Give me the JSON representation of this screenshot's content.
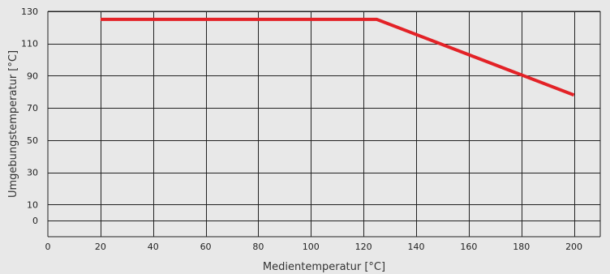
{
  "chart_data": {
    "type": "line",
    "title": "",
    "xlabel": "Medientemperatur [°C]",
    "ylabel": "Umgebungstemperatur [°C]",
    "xlim": [
      0,
      210
    ],
    "ylim": [
      -10,
      130
    ],
    "x_ticks": [
      0,
      20,
      40,
      60,
      80,
      100,
      120,
      140,
      160,
      180,
      200
    ],
    "y_ticks": [
      0,
      10,
      30,
      50,
      70,
      90,
      110,
      130
    ],
    "grid": true,
    "legend": "none",
    "series": [
      {
        "color": "#e32227",
        "x": [
          20,
          125,
          200
        ],
        "y": [
          125,
          125,
          78
        ]
      }
    ]
  }
}
